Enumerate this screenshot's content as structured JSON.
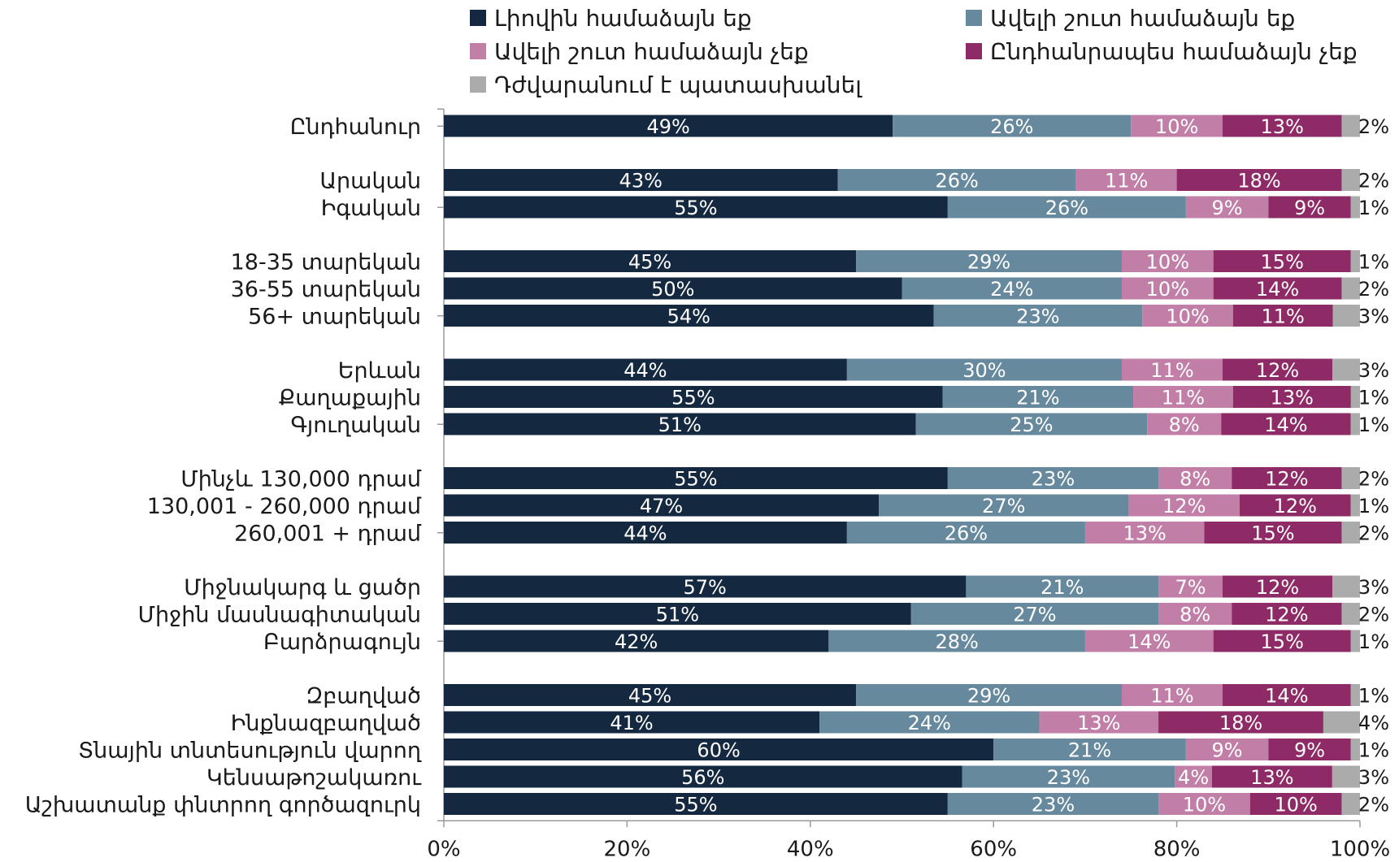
{
  "chart_data": {
    "type": "bar",
    "orientation": "horizontal",
    "stacked": true,
    "xlim": [
      0,
      100
    ],
    "x_ticks": [
      "0%",
      "20%",
      "40%",
      "60%",
      "80%",
      "100%"
    ],
    "legend_position": "top",
    "series": [
      {
        "name": "Լիովին համաձայն եք",
        "color": "#142840"
      },
      {
        "name": "Ավելի շուտ համաձայն եք",
        "color": "#66899e"
      },
      {
        "name": "Ավելի շուտ համաձայն չեք",
        "color": "#c17fa8"
      },
      {
        "name": "Ընդհանրապես համաձայն չեք",
        "color": "#8e2b66"
      },
      {
        "name": "Դժվարանում է պատասխանել",
        "color": "#ababab"
      }
    ],
    "groups": [
      {
        "rows": [
          {
            "label": "Ընդհանուր",
            "values": [
              49,
              26,
              10,
              13,
              2
            ]
          }
        ]
      },
      {
        "rows": [
          {
            "label": "Արական",
            "values": [
              43,
              26,
              11,
              18,
              2
            ]
          },
          {
            "label": "Իգական",
            "values": [
              55,
              26,
              9,
              9,
              1
            ]
          }
        ]
      },
      {
        "rows": [
          {
            "label": "18-35 տարեկան",
            "values": [
              45,
              29,
              10,
              15,
              1
            ]
          },
          {
            "label": "36-55 տարեկան",
            "values": [
              50,
              24,
              10,
              14,
              2
            ]
          },
          {
            "label": "56+ տարեկան",
            "values": [
              54,
              23,
              10,
              11,
              3
            ]
          }
        ]
      },
      {
        "rows": [
          {
            "label": "Երևան",
            "values": [
              44,
              30,
              11,
              12,
              3
            ]
          },
          {
            "label": "Քաղաքային",
            "values": [
              55,
              21,
              11,
              13,
              1
            ]
          },
          {
            "label": "Գյուղական",
            "values": [
              51,
              25,
              8,
              14,
              1
            ]
          }
        ]
      },
      {
        "rows": [
          {
            "label": "Մինչև 130,000 դրամ",
            "values": [
              55,
              23,
              8,
              12,
              2
            ]
          },
          {
            "label": "130,001 - 260,000 դրամ",
            "values": [
              47,
              27,
              12,
              12,
              1
            ]
          },
          {
            "label": "260,001 + դրամ",
            "values": [
              44,
              26,
              13,
              15,
              2
            ]
          }
        ]
      },
      {
        "rows": [
          {
            "label": "Միջնակարգ և ցածր",
            "values": [
              57,
              21,
              7,
              12,
              3
            ]
          },
          {
            "label": "Միջին մասնագիտական",
            "values": [
              51,
              27,
              8,
              12,
              2
            ]
          },
          {
            "label": "Բարձրագույն",
            "values": [
              42,
              28,
              14,
              15,
              1
            ]
          }
        ]
      },
      {
        "rows": [
          {
            "label": "Զբաղված",
            "values": [
              45,
              29,
              11,
              14,
              1
            ]
          },
          {
            "label": "Ինքնազբաղված",
            "values": [
              41,
              24,
              13,
              18,
              4
            ]
          },
          {
            "label": "Տնային տնտեսություն վարող",
            "values": [
              60,
              21,
              9,
              9,
              1
            ]
          },
          {
            "label": "Կենսաթոշակառու",
            "values": [
              56,
              23,
              4,
              13,
              3
            ]
          },
          {
            "label": "Աշխատանք փնտրող գործազուրկ",
            "values": [
              55,
              23,
              10,
              10,
              2
            ]
          }
        ]
      }
    ]
  }
}
